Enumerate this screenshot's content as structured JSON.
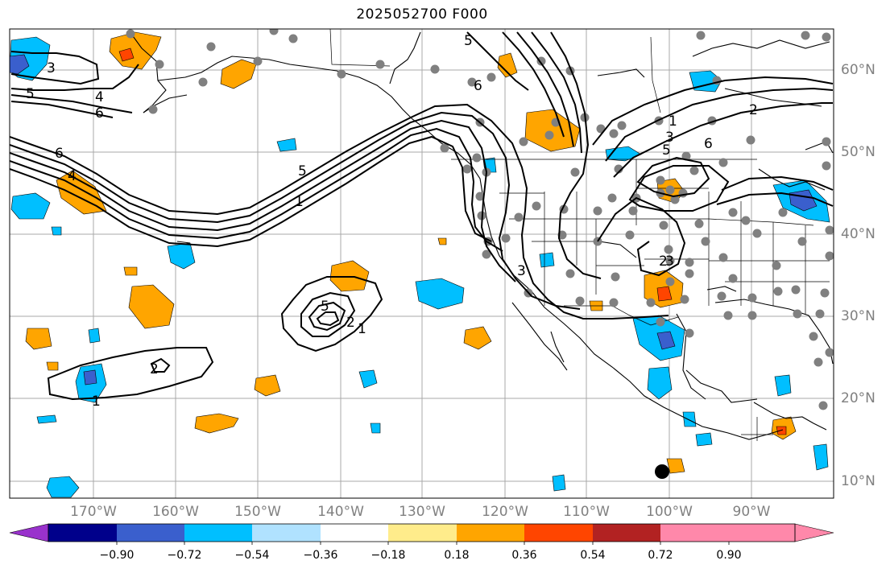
{
  "title": "2025052700 F000",
  "map": {
    "lat_labels": [
      "60°N",
      "50°N",
      "40°N",
      "30°N",
      "20°N",
      "10°N"
    ],
    "lon_labels": [
      "170°W",
      "160°W",
      "150°W",
      "140°W",
      "130°W",
      "120°W",
      "110°W",
      "100°W",
      "90°W"
    ],
    "contour_labels": [
      "3",
      "4",
      "5",
      "6",
      "6",
      "4",
      "5",
      "1",
      "5",
      "6",
      "3",
      "2",
      "1",
      "3",
      "5",
      "6",
      "2",
      "3",
      "5",
      "2",
      "1",
      "2",
      "1"
    ]
  },
  "colorbar": {
    "ticks": [
      "−0.90",
      "−0.72",
      "−0.54",
      "−0.36",
      "−0.18",
      "0.18",
      "0.36",
      "0.54",
      "0.72",
      "0.90"
    ],
    "colors": [
      "#9932CC",
      "#00008B",
      "#3A5FCD",
      "#00BFFF",
      "#B0E2FF",
      "#FFFFFF",
      "#FFEC8B",
      "#FFA500",
      "#FF4500",
      "#B22222",
      "#FF88AA",
      "#FF88AA"
    ]
  }
}
